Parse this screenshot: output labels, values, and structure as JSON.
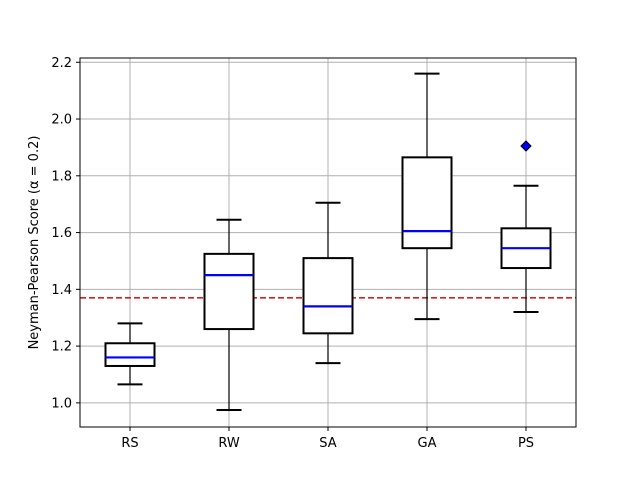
{
  "chart_data": {
    "type": "box",
    "title": "",
    "xlabel": "",
    "ylabel": "Neyman-Pearson Score (α = 0.2)",
    "ylim": [
      0.915,
      2.215
    ],
    "yticks": [
      1.0,
      1.2,
      1.4,
      1.6,
      1.8,
      2.0,
      2.2
    ],
    "ytick_labels": [
      "1.0",
      "1.2",
      "1.4",
      "1.6",
      "1.8",
      "2.0",
      "2.2"
    ],
    "categories": [
      "RS",
      "RW",
      "SA",
      "GA",
      "PS"
    ],
    "boxes": [
      {
        "label": "RS",
        "whisker_low": 1.065,
        "q1": 1.13,
        "median": 1.16,
        "q3": 1.21,
        "whisker_high": 1.28,
        "outliers": []
      },
      {
        "label": "RW",
        "whisker_low": 0.975,
        "q1": 1.26,
        "median": 1.45,
        "q3": 1.525,
        "whisker_high": 1.645,
        "outliers": []
      },
      {
        "label": "SA",
        "whisker_low": 1.14,
        "q1": 1.245,
        "median": 1.34,
        "q3": 1.51,
        "whisker_high": 1.705,
        "outliers": []
      },
      {
        "label": "GA",
        "whisker_low": 1.295,
        "q1": 1.545,
        "median": 1.605,
        "q3": 1.865,
        "whisker_high": 2.16,
        "outliers": []
      },
      {
        "label": "PS",
        "whisker_low": 1.32,
        "q1": 1.475,
        "median": 1.545,
        "q3": 1.615,
        "whisker_high": 1.765,
        "outliers": [
          1.905
        ]
      }
    ],
    "reference_line": {
      "value": 1.37,
      "style": "dashed",
      "color": "#e31a1c"
    },
    "grid": true,
    "colors": {
      "box": "#000000",
      "median": "#0000ff",
      "outlier_fill": "#0000ff",
      "grid": "#b0b0b0"
    }
  }
}
